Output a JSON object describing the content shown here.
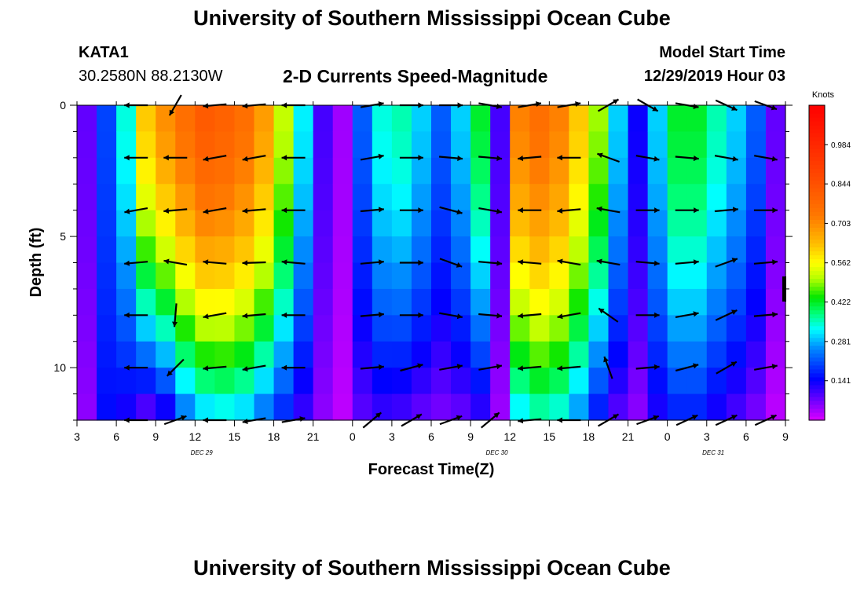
{
  "header": {
    "title": "University of Southern Mississippi Ocean Cube",
    "station": "KATA1",
    "coordinates": "30.2580N 88.2130W",
    "plot_title": "2-D Currents Speed-Magnitude",
    "model_start_label": "Model Start Time",
    "model_start_value": "12/29/2019 Hour 03"
  },
  "footer": {
    "title": "University of Southern Mississippi Ocean Cube"
  },
  "chart_data": {
    "type": "heatmap",
    "title": "2-D Currents Speed-Magnitude",
    "xlabel": "Forecast Time(Z)",
    "ylabel": "Depth (ft)",
    "x_range_hours": [
      0,
      54
    ],
    "y_range_ft": [
      0,
      12
    ],
    "x_tick_hours": [
      0,
      3,
      6,
      9,
      12,
      15,
      18,
      21,
      24,
      27,
      30,
      33,
      36,
      39,
      42,
      45,
      48,
      51,
      54
    ],
    "x_tick_labels": [
      "3",
      "6",
      "9",
      "12",
      "15",
      "18",
      "21",
      "0",
      "3",
      "6",
      "9",
      "12",
      "15",
      "18",
      "21",
      "0",
      "3",
      "6",
      "9"
    ],
    "date_labels": [
      {
        "text": "DEC 29",
        "hour": 9.5
      },
      {
        "text": "DEC 30",
        "hour": 32
      },
      {
        "text": "DEC 31",
        "hour": 48.5
      }
    ],
    "y_ticks": [
      0,
      5,
      10
    ],
    "y_tick_labels": [
      "0",
      "5",
      "10"
    ],
    "colorbar": {
      "unit": "Knots",
      "range": [
        0,
        1.125
      ],
      "tick_values": [
        0.141,
        0.281,
        0.422,
        0.562,
        0.703,
        0.844,
        0.984
      ],
      "tick_labels": [
        "0.141",
        "0.281",
        "0.422",
        "0.562",
        "0.703",
        "0.844",
        "0.984"
      ]
    },
    "speed_profiles": [
      {
        "hour": 0.75,
        "top": 0.08,
        "bottom": 0.05
      },
      {
        "hour": 2.25,
        "top": 0.2,
        "bottom": 0.15
      },
      {
        "hour": 3.75,
        "top": 0.34,
        "bottom": 0.12
      },
      {
        "hour": 5.25,
        "top": 0.62,
        "bottom": 0.06
      },
      {
        "hour": 6.75,
        "top": 0.7,
        "bottom": 0.1
      },
      {
        "hour": 8.25,
        "top": 0.76,
        "bottom": 0.22
      },
      {
        "hour": 9.75,
        "top": 0.82,
        "bottom": 0.28
      },
      {
        "hour": 11.25,
        "top": 0.8,
        "bottom": 0.3
      },
      {
        "hour": 12.75,
        "top": 0.76,
        "bottom": 0.28
      },
      {
        "hour": 14.25,
        "top": 0.68,
        "bottom": 0.22
      },
      {
        "hour": 15.75,
        "top": 0.52,
        "bottom": 0.16
      },
      {
        "hour": 17.25,
        "top": 0.32,
        "bottom": 0.1
      },
      {
        "hour": 18.75,
        "top": 0.1,
        "bottom": 0.05
      },
      {
        "hour": 20.25,
        "top": 0.04,
        "bottom": 0.02
      },
      {
        "hour": 21.75,
        "top": 0.22,
        "bottom": 0.08
      },
      {
        "hour": 23.25,
        "top": 0.34,
        "bottom": 0.1
      },
      {
        "hour": 24.75,
        "top": 0.36,
        "bottom": 0.09
      },
      {
        "hour": 26.25,
        "top": 0.3,
        "bottom": 0.07
      },
      {
        "hour": 27.75,
        "top": 0.22,
        "bottom": 0.06
      },
      {
        "hour": 29.25,
        "top": 0.3,
        "bottom": 0.07
      },
      {
        "hour": 30.75,
        "top": 0.42,
        "bottom": 0.1
      },
      {
        "hour": 32.25,
        "top": 0.1,
        "bottom": 0.04
      },
      {
        "hour": 33.75,
        "top": 0.72,
        "bottom": 0.3
      },
      {
        "hour": 35.25,
        "top": 0.76,
        "bottom": 0.34
      },
      {
        "hour": 36.75,
        "top": 0.72,
        "bottom": 0.32
      },
      {
        "hour": 38.25,
        "top": 0.62,
        "bottom": 0.25
      },
      {
        "hour": 39.75,
        "top": 0.5,
        "bottom": 0.15
      },
      {
        "hour": 41.25,
        "top": 0.3,
        "bottom": 0.08
      },
      {
        "hour": 42.75,
        "top": 0.14,
        "bottom": 0.05
      },
      {
        "hour": 44.25,
        "top": 0.3,
        "bottom": 0.12
      },
      {
        "hour": 45.75,
        "top": 0.42,
        "bottom": 0.16
      },
      {
        "hour": 47.25,
        "top": 0.42,
        "bottom": 0.16
      },
      {
        "hour": 48.75,
        "top": 0.36,
        "bottom": 0.12
      },
      {
        "hour": 50.25,
        "top": 0.3,
        "bottom": 0.09
      },
      {
        "hour": 51.75,
        "top": 0.22,
        "bottom": 0.06
      },
      {
        "hour": 53.25,
        "top": 0.08,
        "bottom": 0.02
      }
    ],
    "vector_hours": [
      4.5,
      7.5,
      10.5,
      13.5,
      16.5,
      22.5,
      25.5,
      28.5,
      31.5,
      34.5,
      37.5,
      40.5,
      43.5,
      46.5,
      49.5,
      52.5
    ],
    "vector_depths": [
      0,
      2,
      4,
      6,
      8,
      10,
      12
    ],
    "vector_directions_deg": [
      [
        180,
        180,
        190,
        185,
        180,
        180,
        180
      ],
      [
        240,
        180,
        185,
        170,
        265,
        225,
        20
      ],
      [
        185,
        190,
        190,
        175,
        190,
        185,
        180
      ],
      [
        185,
        190,
        185,
        182,
        185,
        190,
        190
      ],
      [
        180,
        180,
        180,
        175,
        180,
        180,
        10
      ],
      [
        10,
        10,
        5,
        5,
        5,
        5,
        40
      ],
      [
        0,
        0,
        0,
        0,
        0,
        15,
        30
      ],
      [
        0,
        355,
        345,
        340,
        350,
        10,
        20
      ],
      [
        350,
        355,
        350,
        355,
        355,
        10,
        40
      ],
      [
        10,
        185,
        180,
        175,
        185,
        185,
        185
      ],
      [
        10,
        180,
        185,
        170,
        190,
        185,
        180
      ],
      [
        30,
        160,
        170,
        170,
        145,
        110,
        30
      ],
      [
        330,
        350,
        0,
        355,
        0,
        5,
        20
      ],
      [
        350,
        355,
        0,
        5,
        10,
        15,
        25
      ],
      [
        335,
        350,
        5,
        20,
        25,
        30,
        25
      ],
      [
        340,
        350,
        0,
        5,
        5,
        10,
        25
      ]
    ]
  }
}
